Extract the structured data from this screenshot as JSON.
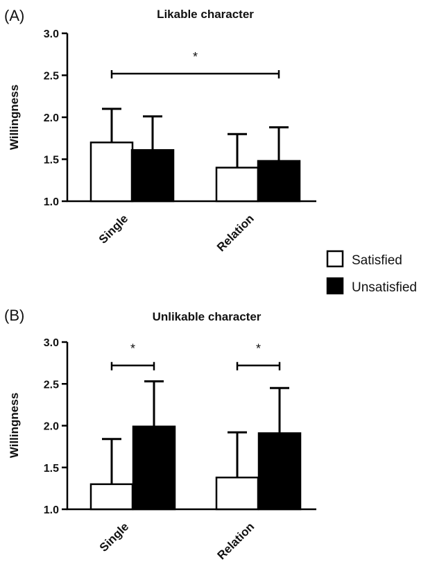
{
  "legend": {
    "items": [
      {
        "label": "Satisfied",
        "fill": "#ffffff"
      },
      {
        "label": "Unsatisfied",
        "fill": "#000000"
      }
    ]
  },
  "chart_data": [
    {
      "type": "bar",
      "panel": "(A)",
      "title": "Likable character",
      "ylabel": "Willingness",
      "ylim": [
        1.0,
        3.0
      ],
      "yticks": [
        "1.0",
        "1.5",
        "2.0",
        "2.5",
        "3.0"
      ],
      "categories": [
        "Single",
        "Relation"
      ],
      "series": [
        {
          "name": "Satisfied",
          "values": [
            1.7,
            1.4
          ],
          "errors": [
            0.4,
            0.4
          ]
        },
        {
          "name": "Unsatisfied",
          "values": [
            1.61,
            1.48
          ],
          "errors": [
            0.4,
            0.4
          ]
        }
      ],
      "significance": [
        {
          "label": "*",
          "from": [
            "Single",
            "Satisfied"
          ],
          "to": [
            "Relation",
            "Unsatisfied"
          ],
          "y": 2.52
        }
      ]
    },
    {
      "type": "bar",
      "panel": "(B)",
      "title": "Unlikable character",
      "ylabel": "Willingness",
      "ylim": [
        1.0,
        3.0
      ],
      "yticks": [
        "1.0",
        "1.5",
        "2.0",
        "2.5",
        "3.0"
      ],
      "categories": [
        "Single",
        "Relation"
      ],
      "series": [
        {
          "name": "Satisfied",
          "values": [
            1.3,
            1.38
          ],
          "errors": [
            0.54,
            0.54
          ]
        },
        {
          "name": "Unsatisfied",
          "values": [
            1.99,
            1.91
          ],
          "errors": [
            0.54,
            0.54
          ]
        }
      ],
      "significance": [
        {
          "label": "*",
          "from": [
            "Single",
            "Satisfied"
          ],
          "to": [
            "Single",
            "Unsatisfied"
          ],
          "y": 2.72
        },
        {
          "label": "*",
          "from": [
            "Relation",
            "Satisfied"
          ],
          "to": [
            "Relation",
            "Unsatisfied"
          ],
          "y": 2.72
        }
      ]
    }
  ]
}
